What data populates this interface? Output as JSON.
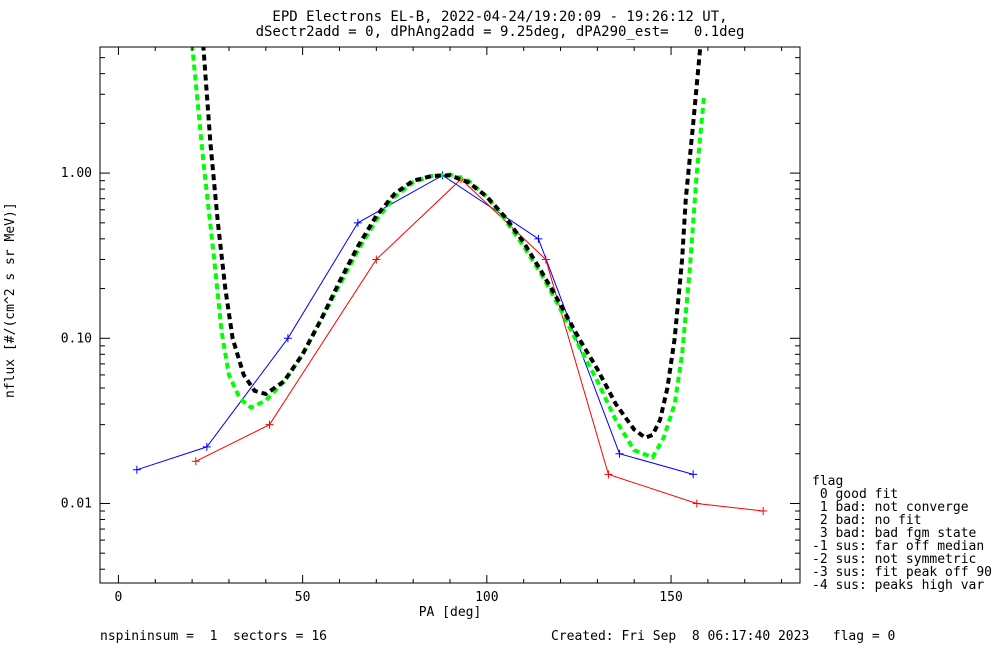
{
  "title_line1": "EPD Electrons EL-B, 2022-04-24/19:20:09 - 19:26:12 UT,",
  "title_line2": "dSectr2add = 0, dPhAng2add = 9.25deg, dPA290_est=   0.1deg",
  "footer": {
    "left": "nspininsum =  1  sectors = 16",
    "right": "Created: Fri Sep  8 06:17:40 2023   flag = 0"
  },
  "legend": {
    "title": "flag",
    "items": [
      " 0 good fit",
      " 1 bad: not converge",
      " 2 bad: no fit",
      " 3 bad: bad fgm state",
      "-1 sus: far off median",
      "-2 sus: not symmetric",
      "-3 sus: fit peak off 90",
      "-4 sus: peaks high var"
    ]
  },
  "chart_data": {
    "type": "line",
    "title": "EPD Electrons EL-B, 2022-04-24/19:20:09 - 19:26:12 UT,",
    "subtitle": "dSectr2add = 0, dPhAng2add = 9.25deg, dPA290_est=   0.1deg",
    "xlabel": "PA [deg]",
    "ylabel": "nflux [#/(cm^2 s sr MeV)]",
    "xlim": [
      -5,
      185
    ],
    "ylim": [
      0.0033,
      5.8
    ],
    "yscale": "log",
    "xticks": [
      0,
      50,
      100,
      150
    ],
    "xtick_labels": [
      "0",
      "50",
      "100",
      "150"
    ],
    "yticks": [
      0.01,
      0.1,
      1.0
    ],
    "ytick_labels": [
      "0.01",
      "0.10",
      "1.00"
    ],
    "grid": false,
    "series": [
      {
        "color": "#0000ff",
        "style": "solid",
        "marker": "+",
        "x": [
          5,
          24,
          46,
          65,
          88,
          114,
          136,
          156
        ],
        "values": [
          0.016,
          0.022,
          0.1,
          0.5,
          0.97,
          0.4,
          0.02,
          0.015
        ]
      },
      {
        "color": "#ff0000",
        "style": "solid",
        "marker": "+",
        "x": [
          21,
          41,
          70,
          93,
          116,
          133,
          157,
          175
        ],
        "values": [
          0.018,
          0.03,
          0.3,
          0.92,
          0.3,
          0.015,
          0.01,
          0.009
        ]
      },
      {
        "color": "#00ff00",
        "style": "dashed",
        "marker": "none",
        "x": [
          20,
          23,
          26,
          28,
          30,
          33,
          36,
          40,
          45,
          50,
          55,
          60,
          65,
          70,
          75,
          80,
          85,
          90,
          95,
          100,
          105,
          110,
          115,
          120,
          125,
          130,
          135,
          140,
          145,
          148,
          151,
          153,
          155,
          157,
          159
        ],
        "values": [
          6.0,
          1.2,
          0.3,
          0.11,
          0.06,
          0.043,
          0.038,
          0.042,
          0.055,
          0.08,
          0.13,
          0.21,
          0.34,
          0.52,
          0.72,
          0.88,
          0.96,
          0.98,
          0.9,
          0.72,
          0.52,
          0.36,
          0.24,
          0.15,
          0.09,
          0.055,
          0.032,
          0.021,
          0.019,
          0.025,
          0.04,
          0.08,
          0.25,
          1.0,
          3.0
        ]
      },
      {
        "color": "#000000",
        "style": "dashed",
        "marker": "none",
        "x": [
          23,
          25,
          27,
          29,
          31,
          34,
          37,
          40,
          45,
          50,
          55,
          60,
          65,
          70,
          75,
          80,
          85,
          90,
          95,
          100,
          105,
          110,
          115,
          120,
          125,
          130,
          135,
          140,
          143,
          145,
          147,
          149,
          151,
          153,
          154,
          156,
          158
        ],
        "values": [
          6.0,
          1.5,
          0.5,
          0.2,
          0.1,
          0.06,
          0.048,
          0.046,
          0.055,
          0.08,
          0.13,
          0.22,
          0.36,
          0.55,
          0.75,
          0.9,
          0.96,
          0.97,
          0.88,
          0.72,
          0.54,
          0.38,
          0.25,
          0.16,
          0.1,
          0.065,
          0.04,
          0.028,
          0.025,
          0.026,
          0.032,
          0.05,
          0.1,
          0.3,
          0.7,
          2.0,
          6.0
        ]
      }
    ]
  }
}
